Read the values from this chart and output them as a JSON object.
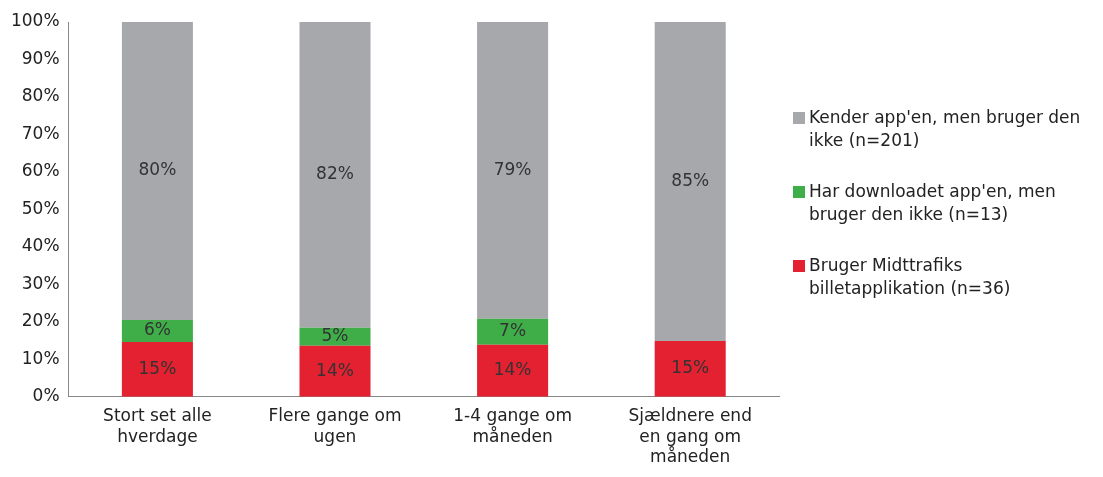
{
  "chart_data": {
    "type": "bar",
    "stacked": true,
    "categories": [
      "Stort set alle hverdage",
      "Flere gange om ugen",
      "1-4 gange om måneden",
      "Sjældnere end en gang om måneden"
    ],
    "series": [
      {
        "name": "Bruger Midttrafiks billetapplikation (n=36)",
        "color": "#e32130",
        "values": [
          14.6,
          13.6,
          13.9,
          14.9
        ],
        "value_labels": [
          "15%",
          "14%",
          "14%",
          "15%"
        ]
      },
      {
        "name": "Har downloadet app'en, men bruger den ikke (n=13)",
        "color": "#3fae49",
        "values": [
          5.9,
          4.8,
          6.9,
          null
        ],
        "value_labels": [
          "6%",
          "5%",
          "7%",
          null
        ]
      },
      {
        "name": "Kender app'en, men bruger den ikke (n=201)",
        "color": "#a7a8ac",
        "values": [
          79.5,
          81.6,
          79.2,
          85.1
        ],
        "value_labels": [
          "80%",
          "82%",
          "79%",
          "85%"
        ]
      }
    ],
    "ylim": [
      0,
      100
    ],
    "yticks": [
      {
        "value": 0,
        "label": "0%"
      },
      {
        "value": 10,
        "label": "10%"
      },
      {
        "value": 20,
        "label": "20%"
      },
      {
        "value": 30,
        "label": "30%"
      },
      {
        "value": 40,
        "label": "40%"
      },
      {
        "value": 50,
        "label": "50%"
      },
      {
        "value": 60,
        "label": "60%"
      },
      {
        "value": 70,
        "label": "70%"
      },
      {
        "value": 80,
        "label": "80%"
      },
      {
        "value": 90,
        "label": "90%"
      },
      {
        "value": 100,
        "label": "100%"
      }
    ],
    "grid": false,
    "legend": "right"
  }
}
